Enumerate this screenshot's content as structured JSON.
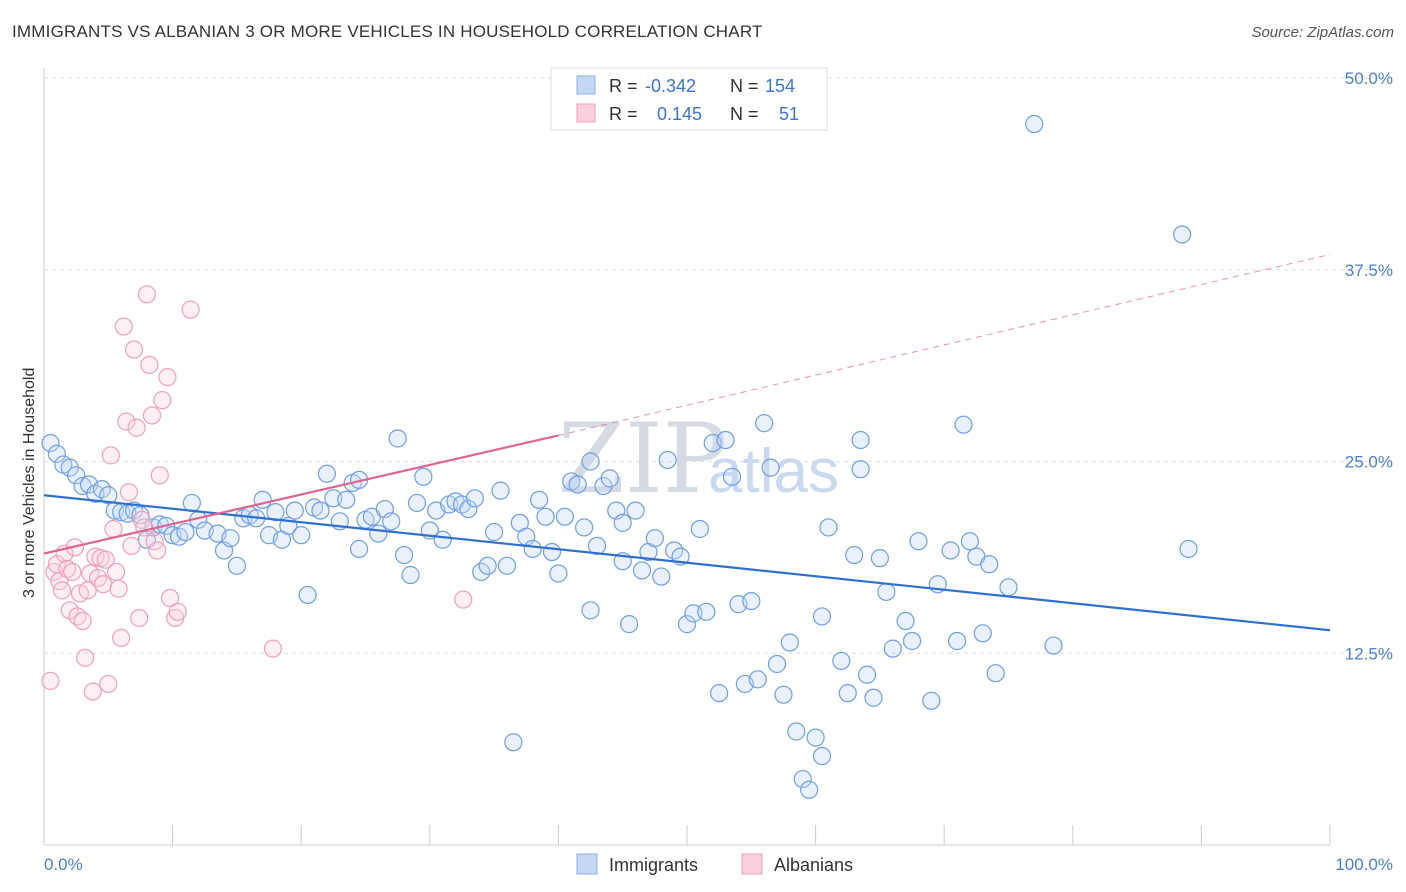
{
  "header": {
    "title": "IMMIGRANTS VS ALBANIAN 3 OR MORE VEHICLES IN HOUSEHOLD CORRELATION CHART",
    "source": "Source: ZipAtlas.com"
  },
  "watermark": {
    "zip": "ZIP",
    "atlas": "atlas"
  },
  "legend": {
    "rows": [
      {
        "r_label": "R =",
        "r_value": "-0.342",
        "n_label": "N =",
        "n_value": "154"
      },
      {
        "r_label": "R =",
        "r_value": "0.145",
        "n_label": "N =",
        "n_value": "51"
      }
    ]
  },
  "bottom_legend": {
    "items": [
      "Immigrants",
      "Albanians"
    ]
  },
  "chart_data": {
    "type": "scatter",
    "ylabel": "3 or more Vehicles in Household",
    "xlim": [
      0,
      100
    ],
    "ylim": [
      0,
      52
    ],
    "y_ticks": [
      12.5,
      25.0,
      37.5,
      50.0
    ],
    "y_tick_labels": [
      "12.5%",
      "25.0%",
      "37.5%",
      "50.0%"
    ],
    "x_tick_labels": [
      "0.0%",
      "100.0%"
    ],
    "grid": "horizontal dashed",
    "legend_position": "top-center",
    "colors": {
      "immigrants": "#6f9fe6",
      "albanians": "#f0a0bb",
      "immigrants_line": "#2f6fd0",
      "albanians_line": "#e0648e"
    },
    "series": [
      {
        "name": "Immigrants",
        "r": -0.342,
        "n": 154,
        "trend": {
          "x": [
            0,
            100
          ],
          "y": [
            22.8,
            14.0
          ]
        },
        "points": [
          [
            0.5,
            26.2
          ],
          [
            1.0,
            25.5
          ],
          [
            1.5,
            24.8
          ],
          [
            2.0,
            24.6
          ],
          [
            2.5,
            24.1
          ],
          [
            3.0,
            23.4
          ],
          [
            3.5,
            23.5
          ],
          [
            4.0,
            22.9
          ],
          [
            4.5,
            23.2
          ],
          [
            5.0,
            22.8
          ],
          [
            5.5,
            21.8
          ],
          [
            6.0,
            21.7
          ],
          [
            6.5,
            21.6
          ],
          [
            7.0,
            21.8
          ],
          [
            7.5,
            21.5
          ],
          [
            8.0,
            19.9
          ],
          [
            8.5,
            20.7
          ],
          [
            9.0,
            20.9
          ],
          [
            9.5,
            20.8
          ],
          [
            10.0,
            20.2
          ],
          [
            10.5,
            20.1
          ],
          [
            11.0,
            20.4
          ],
          [
            11.5,
            22.3
          ],
          [
            12.0,
            21.2
          ],
          [
            12.5,
            20.5
          ],
          [
            13.5,
            20.3
          ],
          [
            14.0,
            19.2
          ],
          [
            14.5,
            20.0
          ],
          [
            15.0,
            18.2
          ],
          [
            15.5,
            21.3
          ],
          [
            16.0,
            21.5
          ],
          [
            16.5,
            21.3
          ],
          [
            17.0,
            22.5
          ],
          [
            17.5,
            20.2
          ],
          [
            18.0,
            21.7
          ],
          [
            18.5,
            19.9
          ],
          [
            19.0,
            20.8
          ],
          [
            19.5,
            21.8
          ],
          [
            20.0,
            20.2
          ],
          [
            20.5,
            16.3
          ],
          [
            21.0,
            22.0
          ],
          [
            21.5,
            21.8
          ],
          [
            22.0,
            24.2
          ],
          [
            22.5,
            22.6
          ],
          [
            23.0,
            21.1
          ],
          [
            23.5,
            22.5
          ],
          [
            24.0,
            23.6
          ],
          [
            24.5,
            23.8
          ],
          [
            24.5,
            19.3
          ],
          [
            25.0,
            21.2
          ],
          [
            25.5,
            21.4
          ],
          [
            26.0,
            20.3
          ],
          [
            26.5,
            21.9
          ],
          [
            27.0,
            21.1
          ],
          [
            27.5,
            26.5
          ],
          [
            28.0,
            18.9
          ],
          [
            28.5,
            17.6
          ],
          [
            29.0,
            22.3
          ],
          [
            29.5,
            24.0
          ],
          [
            30.0,
            20.5
          ],
          [
            30.5,
            21.8
          ],
          [
            31.0,
            19.9
          ],
          [
            31.5,
            22.2
          ],
          [
            32.0,
            22.4
          ],
          [
            32.5,
            22.2
          ],
          [
            33.0,
            21.9
          ],
          [
            33.5,
            22.6
          ],
          [
            34.0,
            17.8
          ],
          [
            34.5,
            18.2
          ],
          [
            35.0,
            20.4
          ],
          [
            35.5,
            23.1
          ],
          [
            36.0,
            18.2
          ],
          [
            36.5,
            6.7
          ],
          [
            37.0,
            21.0
          ],
          [
            37.5,
            20.1
          ],
          [
            38.0,
            19.3
          ],
          [
            38.5,
            22.5
          ],
          [
            39.0,
            21.4
          ],
          [
            39.5,
            19.1
          ],
          [
            40.0,
            17.7
          ],
          [
            40.5,
            21.4
          ],
          [
            41.0,
            23.7
          ],
          [
            41.5,
            23.5
          ],
          [
            42.0,
            20.7
          ],
          [
            42.5,
            25.0
          ],
          [
            42.5,
            15.3
          ],
          [
            43.0,
            19.5
          ],
          [
            43.5,
            23.4
          ],
          [
            44.0,
            23.9
          ],
          [
            44.5,
            21.8
          ],
          [
            45.0,
            18.5
          ],
          [
            45.0,
            21.0
          ],
          [
            45.5,
            14.4
          ],
          [
            46.0,
            21.8
          ],
          [
            46.5,
            17.9
          ],
          [
            47.0,
            19.1
          ],
          [
            47.5,
            20.0
          ],
          [
            48.0,
            17.5
          ],
          [
            48.5,
            25.1
          ],
          [
            49.0,
            19.2
          ],
          [
            49.5,
            18.8
          ],
          [
            50.0,
            14.4
          ],
          [
            50.5,
            15.1
          ],
          [
            51.0,
            20.6
          ],
          [
            51.5,
            15.2
          ],
          [
            52.0,
            26.2
          ],
          [
            52.5,
            9.9
          ],
          [
            53.0,
            26.4
          ],
          [
            53.5,
            24.0
          ],
          [
            54.0,
            15.7
          ],
          [
            54.5,
            10.5
          ],
          [
            55.0,
            15.9
          ],
          [
            55.5,
            10.8
          ],
          [
            56.0,
            27.5
          ],
          [
            56.5,
            24.6
          ],
          [
            57.0,
            11.8
          ],
          [
            57.5,
            9.8
          ],
          [
            58.0,
            13.2
          ],
          [
            58.5,
            7.4
          ],
          [
            59.0,
            4.3
          ],
          [
            59.5,
            3.6
          ],
          [
            60.0,
            7.0
          ],
          [
            60.5,
            5.8
          ],
          [
            60.5,
            14.9
          ],
          [
            61.0,
            20.7
          ],
          [
            62.0,
            12.0
          ],
          [
            62.5,
            9.9
          ],
          [
            63.0,
            18.9
          ],
          [
            63.5,
            24.5
          ],
          [
            63.5,
            26.4
          ],
          [
            64.0,
            11.1
          ],
          [
            64.5,
            9.6
          ],
          [
            65.0,
            18.7
          ],
          [
            65.5,
            16.5
          ],
          [
            66.0,
            12.8
          ],
          [
            67.0,
            14.6
          ],
          [
            67.5,
            13.3
          ],
          [
            68.0,
            19.8
          ],
          [
            69.0,
            9.4
          ],
          [
            69.5,
            17.0
          ],
          [
            70.5,
            19.2
          ],
          [
            71.0,
            13.3
          ],
          [
            71.5,
            27.4
          ],
          [
            72.0,
            19.8
          ],
          [
            72.5,
            18.8
          ],
          [
            73.0,
            13.8
          ],
          [
            73.5,
            18.3
          ],
          [
            74.0,
            11.2
          ],
          [
            75.0,
            16.8
          ],
          [
            77.0,
            47.0
          ],
          [
            78.5,
            13.0
          ],
          [
            88.5,
            39.8
          ],
          [
            89.0,
            19.3
          ]
        ]
      },
      {
        "name": "Albanians",
        "r": 0.145,
        "n": 51,
        "trend": {
          "x": [
            0,
            40
          ],
          "y": [
            19.0,
            26.7
          ]
        },
        "trend_extended": {
          "x": [
            40,
            100
          ],
          "y": [
            26.7,
            38.5
          ]
        },
        "points": [
          [
            0.5,
            10.7
          ],
          [
            0.8,
            17.8
          ],
          [
            1.0,
            18.3
          ],
          [
            1.2,
            17.2
          ],
          [
            1.4,
            16.6
          ],
          [
            1.6,
            19.0
          ],
          [
            1.8,
            18.0
          ],
          [
            2.0,
            15.3
          ],
          [
            2.2,
            17.8
          ],
          [
            2.4,
            19.4
          ],
          [
            2.6,
            14.9
          ],
          [
            2.8,
            16.4
          ],
          [
            3.0,
            14.6
          ],
          [
            3.2,
            12.2
          ],
          [
            3.4,
            16.6
          ],
          [
            3.6,
            17.7
          ],
          [
            3.8,
            10.0
          ],
          [
            4.0,
            18.8
          ],
          [
            4.2,
            17.4
          ],
          [
            4.4,
            18.7
          ],
          [
            4.6,
            17.0
          ],
          [
            4.8,
            18.6
          ],
          [
            5.0,
            10.5
          ],
          [
            5.2,
            25.4
          ],
          [
            5.4,
            20.6
          ],
          [
            5.6,
            17.8
          ],
          [
            5.8,
            16.7
          ],
          [
            6.0,
            13.5
          ],
          [
            6.2,
            33.8
          ],
          [
            6.4,
            27.6
          ],
          [
            6.6,
            23.0
          ],
          [
            6.8,
            19.5
          ],
          [
            7.0,
            32.3
          ],
          [
            7.2,
            27.2
          ],
          [
            7.4,
            14.8
          ],
          [
            7.6,
            21.2
          ],
          [
            7.8,
            20.7
          ],
          [
            8.0,
            35.9
          ],
          [
            8.2,
            31.3
          ],
          [
            8.4,
            28.0
          ],
          [
            8.6,
            19.8
          ],
          [
            8.8,
            19.2
          ],
          [
            9.0,
            24.1
          ],
          [
            9.2,
            29.0
          ],
          [
            9.6,
            30.5
          ],
          [
            9.8,
            16.1
          ],
          [
            10.2,
            14.8
          ],
          [
            10.4,
            15.2
          ],
          [
            11.4,
            34.9
          ],
          [
            17.8,
            12.8
          ],
          [
            32.6,
            16.0
          ]
        ]
      }
    ]
  }
}
